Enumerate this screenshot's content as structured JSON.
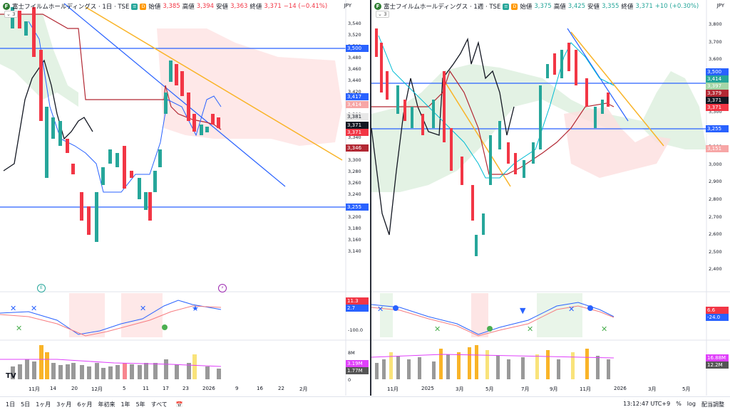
{
  "left": {
    "title": "富士フイルムホールディングス · 1日 · TSE",
    "ohlc": {
      "open_label": "始値",
      "open": "3,385",
      "high_label": "高値",
      "high": "3,394",
      "low_label": "安値",
      "low": "3,363",
      "close_label": "終値",
      "close": "3,371",
      "change": "−14 (−0.41%)"
    },
    "currency": "JPY",
    "collapse": "3",
    "y_ticks": [
      "3,540",
      "3,520",
      "3,500",
      "3,480",
      "3,460",
      "3,440",
      "3,420",
      "3,400",
      "3,380",
      "3,360",
      "3,340",
      "3,320",
      "3,300",
      "3,280",
      "3,260",
      "3,240",
      "3,220",
      "3,200",
      "3,180",
      "3,160",
      "3,140"
    ],
    "price_labels": [
      {
        "text": "3,500",
        "color": "#2962ff",
        "y": 68
      },
      {
        "text": "3,417",
        "color": "#2962ff",
        "y": 136
      },
      {
        "text": "3,414",
        "color": "#f7a6a6",
        "y": 147
      },
      {
        "text": "3,381",
        "color": "#e8e8e8",
        "y": 164
      },
      {
        "text": "3,371",
        "color": "#131722",
        "y": 176
      },
      {
        "text": "3,371",
        "color": "#f23645",
        "y": 186
      },
      {
        "text": "3,346",
        "color": "#b22833",
        "y": 208
      },
      {
        "text": "3,255",
        "color": "#2962ff",
        "y": 291
      }
    ],
    "osc_labels": [
      {
        "text": "11.3",
        "color": "#f23645",
        "y": 423
      },
      {
        "text": "2.7",
        "color": "#2962ff",
        "y": 433
      }
    ],
    "osc_tick": "-100.0",
    "vol_labels": [
      {
        "text": "3.19M",
        "color": "#e040fb",
        "y": 511
      },
      {
        "text": "1.77M",
        "color": "#555555",
        "y": 521
      }
    ],
    "vol_ticks": [
      "8M",
      "0"
    ],
    "time_ticks": [
      "11月",
      "14",
      "20",
      "12月",
      "5",
      "11",
      "17",
      "23",
      "2026",
      "9",
      "16",
      "22",
      "2月"
    ]
  },
  "right": {
    "title": "富士フイルムホールディングス · 1週 · TSE",
    "ohlc": {
      "open_label": "始値",
      "open": "3,375",
      "high_label": "高値",
      "high": "3,425",
      "low_label": "安値",
      "low": "3,355",
      "close_label": "終値",
      "close": "3,371",
      "change": "+10 (+0.30%)"
    },
    "currency": "JPY",
    "collapse": "3",
    "y_ticks": [
      "3,800",
      "3,700",
      "3,600",
      "3,500",
      "3,400",
      "3,300",
      "3,200",
      "3,100",
      "3,000",
      "2,900",
      "2,800",
      "2,700",
      "2,600",
      "2,500",
      "2,400"
    ],
    "price_labels": [
      {
        "text": "3,500",
        "color": "#2962ff",
        "y": 101
      },
      {
        "text": "3,414",
        "color": "#26a69a",
        "y": 111
      },
      {
        "text": "3,397",
        "color": "#a5d6a7",
        "y": 121
      },
      {
        "text": "3,379",
        "color": "#b22833",
        "y": 131
      },
      {
        "text": "3,371",
        "color": "#131722",
        "y": 141
      },
      {
        "text": "3,371",
        "color": "#f23645",
        "y": 151
      },
      {
        "text": "3,255",
        "color": "#2962ff",
        "y": 181
      },
      {
        "text": "3,151",
        "color": "#f7a6a6",
        "y": 209
      }
    ],
    "osc_labels": [
      {
        "text": "6.6",
        "color": "#f23645",
        "y": 436
      },
      {
        "text": "-24.0",
        "color": "#2962ff",
        "y": 446
      }
    ],
    "vol_labels": [
      {
        "text": "16.88M",
        "color": "#e040fb",
        "y": 503
      },
      {
        "text": "12.2M",
        "color": "#555555",
        "y": 513
      }
    ],
    "time_ticks": [
      "11月",
      "2025",
      "3月",
      "5月",
      "7月",
      "9月",
      "11月",
      "2026",
      "3月",
      "5月"
    ]
  },
  "bottom": {
    "ranges": [
      "1日",
      "5日",
      "1ヶ月",
      "3ヶ月",
      "6ヶ月",
      "年初来",
      "1年",
      "5年",
      "すべて"
    ],
    "time": "13:12:47 UTC+9",
    "adjust": "配当調整"
  }
}
